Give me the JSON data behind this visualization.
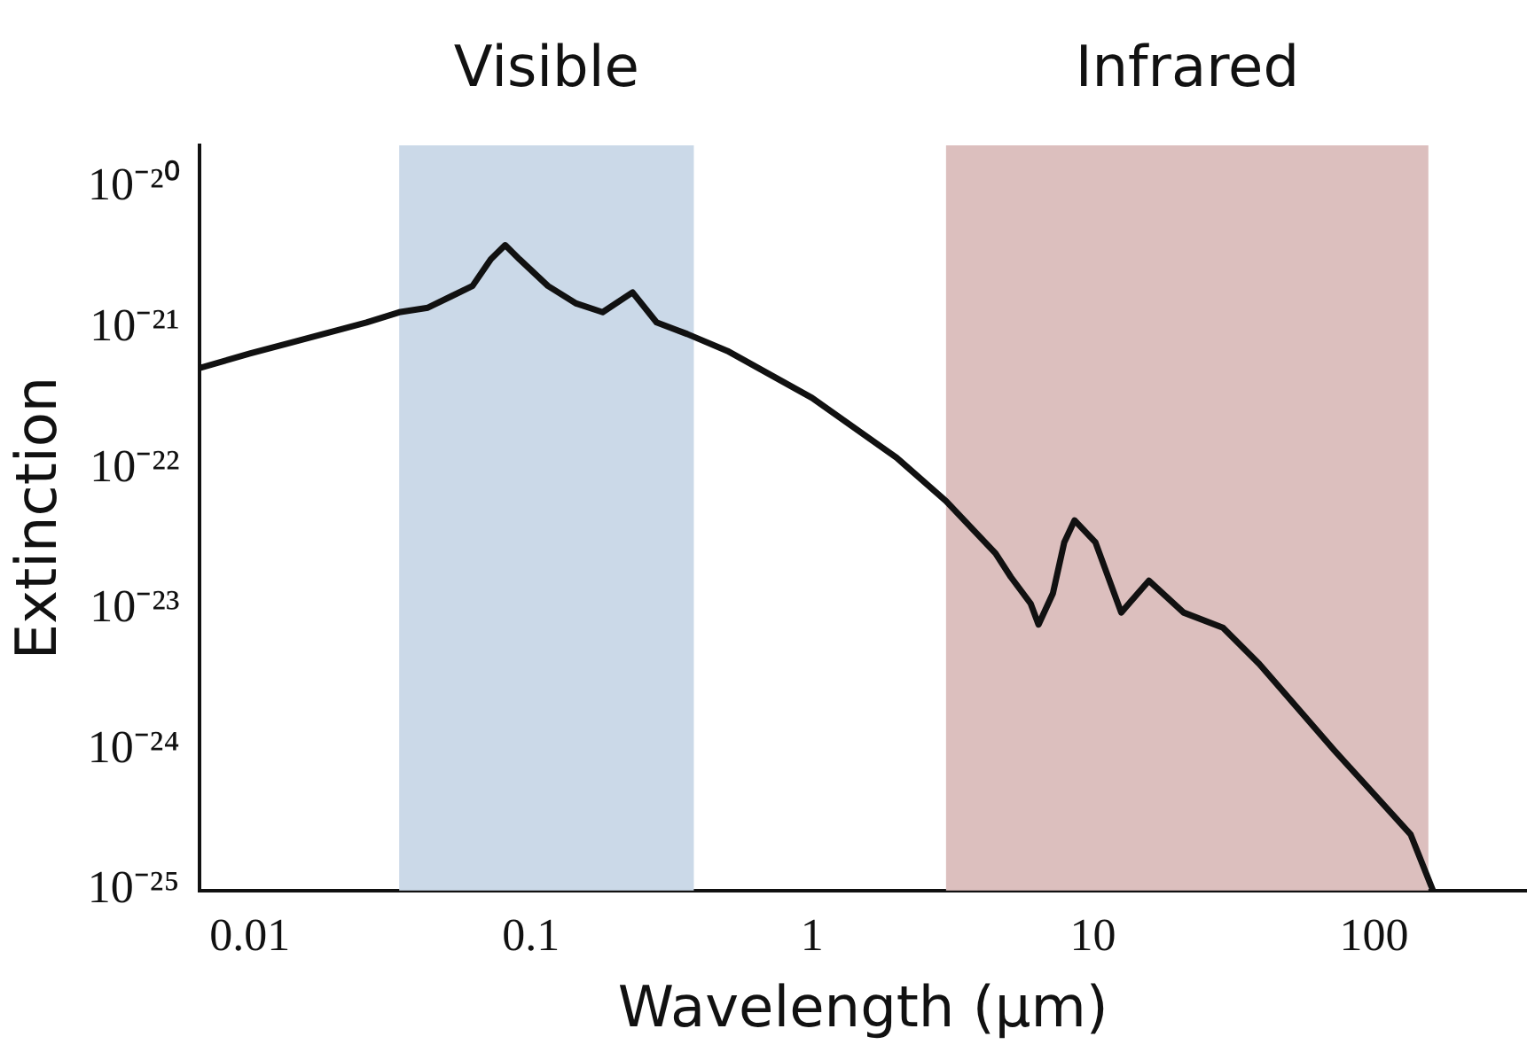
{
  "chart_data": {
    "type": "line",
    "xlabel": "Wavelength (μm)",
    "ylabel": "Extinction",
    "log": "xy",
    "grid": false,
    "legend": false,
    "marker": "none",
    "line_style": "solid",
    "xlim": [
      0.0066,
      350
    ],
    "ylim": [
      1e-25,
      2e-20
    ],
    "xticks": [
      0.01,
      0.1,
      1,
      10,
      100
    ],
    "yticks": [
      {
        "value": 1e-25,
        "label": "10⁻²⁵"
      },
      {
        "value": 1e-24,
        "label": "10⁻²⁴"
      },
      {
        "value": 1e-23,
        "label": "10⁻²³"
      },
      {
        "value": 1e-22,
        "label": "10⁻²²"
      },
      {
        "value": 1e-21,
        "label": "10⁻²¹"
      },
      {
        "value": 1e-20,
        "label": "10⁻²⁰"
      }
    ],
    "bands": [
      {
        "axis": "x",
        "from": 0.034,
        "to": 0.38,
        "label": "Visible",
        "color": "#cbd9e8"
      },
      {
        "axis": "x",
        "from": 3.0,
        "to": 156,
        "label": "Infrared",
        "color": "#dcbfbe"
      }
    ],
    "series": [
      {
        "color": "#111111",
        "x": [
          0.0066,
          0.01,
          0.014,
          0.026,
          0.034,
          0.043,
          0.062,
          0.072,
          0.081,
          0.091,
          0.115,
          0.145,
          0.18,
          0.23,
          0.28,
          0.36,
          0.5,
          1,
          2.0,
          3.0,
          4.5,
          5.1,
          6.0,
          6.4,
          7.2,
          7.9,
          8.6,
          10.2,
          12.6,
          15.8,
          21,
          29,
          39,
          72,
          135,
          162
        ],
        "values": [
          5.2e-22,
          6.6e-22,
          7.9e-22,
          1.1e-21,
          1.3e-21,
          1.4e-21,
          2e-21,
          3.1e-21,
          3.9e-21,
          3.1e-21,
          2e-21,
          1.5e-21,
          1.3e-21,
          1.8e-21,
          1.1e-21,
          9.1e-22,
          6.9e-22,
          3.2e-22,
          1.2e-22,
          5.9e-23,
          2.5e-23,
          1.7e-23,
          1.1e-23,
          7.8e-24,
          1.3e-23,
          3e-23,
          4.3e-23,
          3e-23,
          9.5e-24,
          1.6e-23,
          9.5e-24,
          7.4e-24,
          4.1e-24,
          1e-24,
          2.5e-25,
          1e-25
        ]
      }
    ]
  }
}
